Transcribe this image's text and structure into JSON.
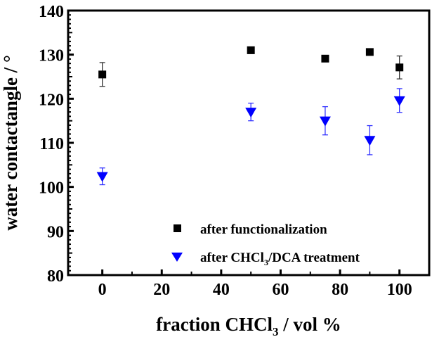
{
  "chart_data": {
    "type": "scatter",
    "title": "",
    "xlabel": "fraction CHCl",
    "xlabel_sub": "3",
    "xlabel_suffix": " / vol %",
    "ylabel": "water contactangle / °",
    "xlim": [
      -11.5,
      110
    ],
    "ylim": [
      80,
      140
    ],
    "xticks": [
      0,
      20,
      40,
      60,
      80,
      100
    ],
    "yticks": [
      80,
      90,
      100,
      110,
      120,
      130,
      140
    ],
    "grid": false,
    "legend_position": "bottom-right",
    "series": [
      {
        "name": "after functionalization",
        "name_sub": "",
        "name_suffix": "",
        "marker": "square",
        "color": "#000000",
        "x": [
          0,
          50,
          75,
          90,
          100
        ],
        "y": [
          125.5,
          131.0,
          129.1,
          130.6,
          127.1
        ],
        "err": [
          2.7,
          0.3,
          0.6,
          0.3,
          2.6
        ]
      },
      {
        "name": "after CHCl",
        "name_sub": "3",
        "name_suffix": "/DCA treatment",
        "marker": "triangle-down",
        "color": "#0000ff",
        "x": [
          0,
          50,
          75,
          90,
          100
        ],
        "y": [
          102.4,
          117.0,
          115.0,
          110.6,
          119.6
        ],
        "err": [
          1.9,
          2.0,
          3.2,
          3.3,
          2.7
        ]
      }
    ]
  }
}
